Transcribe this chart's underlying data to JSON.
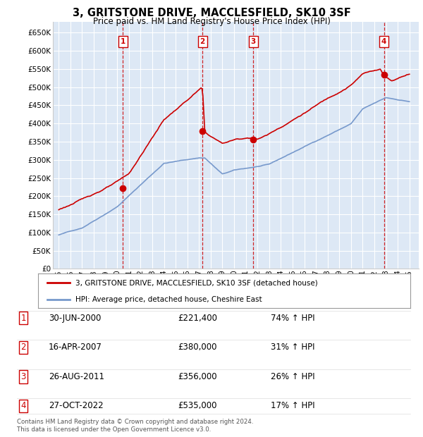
{
  "title": "3, GRITSTONE DRIVE, MACCLESFIELD, SK10 3SF",
  "subtitle": "Price paid vs. HM Land Registry's House Price Index (HPI)",
  "legend_line1": "3, GRITSTONE DRIVE, MACCLESFIELD, SK10 3SF (detached house)",
  "legend_line2": "HPI: Average price, detached house, Cheshire East",
  "footer1": "Contains HM Land Registry data © Crown copyright and database right 2024.",
  "footer2": "This data is licensed under the Open Government Licence v3.0.",
  "transactions": [
    {
      "num": 1,
      "date": "30-JUN-2000",
      "price": 221400,
      "pct": "74%",
      "dir": "↑"
    },
    {
      "num": 2,
      "date": "16-APR-2007",
      "price": 380000,
      "pct": "31%",
      "dir": "↑"
    },
    {
      "num": 3,
      "date": "26-AUG-2011",
      "price": 356000,
      "pct": "26%",
      "dir": "↑"
    },
    {
      "num": 4,
      "date": "27-OCT-2022",
      "price": 535000,
      "pct": "17%",
      "dir": "↑"
    }
  ],
  "trans_years": [
    2000.5,
    2007.29,
    2011.65,
    2022.82
  ],
  "trans_prices": [
    221400,
    380000,
    356000,
    535000
  ],
  "hpi_color": "#7799cc",
  "price_color": "#cc0000",
  "vline_color": "#cc0000",
  "bg_color": "#dde8f5",
  "grid_color": "#ffffff",
  "ylim": [
    0,
    680000
  ],
  "yticks": [
    0,
    50000,
    100000,
    150000,
    200000,
    250000,
    300000,
    350000,
    400000,
    450000,
    500000,
    550000,
    600000,
    650000
  ],
  "xlim_start": 1994.5,
  "xlim_end": 2025.8
}
